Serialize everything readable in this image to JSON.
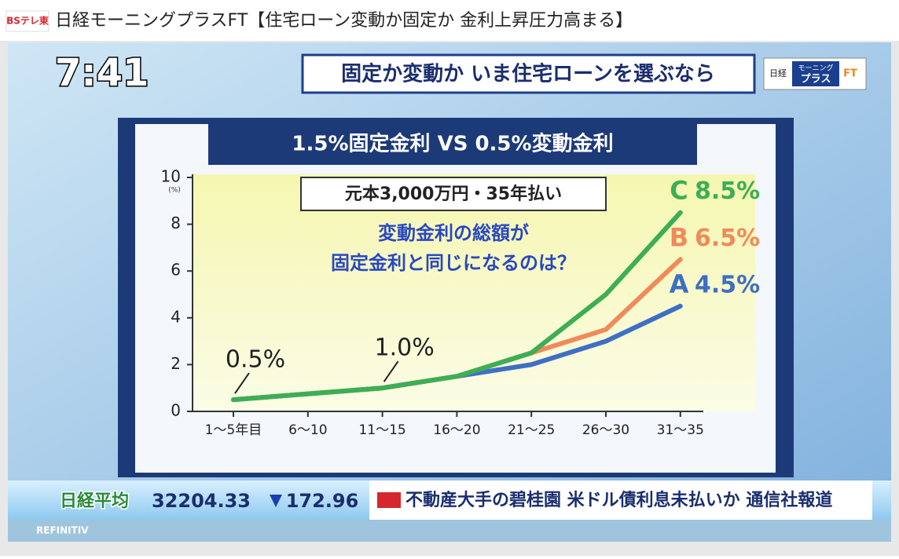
{
  "window": {
    "logo": "BSテレ東",
    "title": "日経モーニングプラスFT【住宅ローン変動か固定か 金利上昇圧力高まる】"
  },
  "broadcast": {
    "clock": "7:41",
    "banner": "固定か変動か いま住宅ローンを選ぶなら",
    "show_logo": [
      "日経",
      "モーニング",
      "プラス",
      "FT"
    ],
    "ticker": {
      "index_name": "日経平均",
      "index_value": "32204.33",
      "index_change": "172.96",
      "news": "不動産大手の碧桂園 米ドル債利息未払いか 通信社報道",
      "source": "REFINITIV"
    }
  },
  "chart_data": {
    "type": "line",
    "title": "1.5%固定金利 VS 0.5%変動金利",
    "subtitle": "元本3,000万円・35年払い",
    "question": [
      "変動金利の総額が",
      "固定金利と同じになるのは？"
    ],
    "y_unit": "(%)",
    "categories": [
      "1～5年目",
      "6～10",
      "11～15",
      "16～20",
      "21～25",
      "26～30",
      "31～35"
    ],
    "series": [
      {
        "name": "A",
        "end_label": "4.5%",
        "color": "#3f6fc4",
        "values": [
          0.5,
          0.75,
          1.0,
          1.5,
          2.0,
          3.0,
          4.5
        ]
      },
      {
        "name": "B",
        "end_label": "6.5%",
        "color": "#f08a5a",
        "values": [
          0.5,
          0.75,
          1.0,
          1.5,
          2.5,
          3.5,
          6.5
        ]
      },
      {
        "name": "C",
        "end_label": "8.5%",
        "color": "#3dae55",
        "values": [
          0.5,
          0.75,
          1.0,
          1.5,
          2.5,
          5.0,
          8.5
        ]
      }
    ],
    "annotations": [
      {
        "text": "0.5%",
        "category": 0
      },
      {
        "text": "1.0%",
        "category": 2
      }
    ],
    "ylim": [
      0,
      10
    ],
    "yticks": [
      0,
      2,
      4,
      6,
      8,
      10
    ]
  }
}
